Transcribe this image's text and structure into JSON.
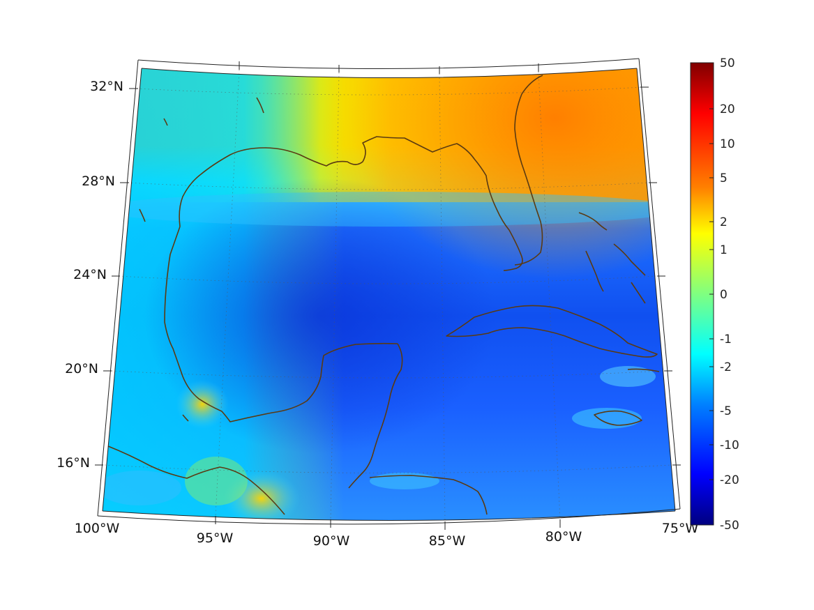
{
  "map": {
    "lat_labels": [
      "32°N",
      "28°N",
      "24°N",
      "20°N",
      "16°N"
    ],
    "lon_labels": [
      "100°W",
      "95°W",
      "90°W",
      "85°W",
      "80°W",
      "75°W"
    ],
    "coastline_color": "#5a3a12",
    "grid_style": "dotted"
  },
  "colorbar": {
    "tick_labels": [
      "50",
      "20",
      "10",
      "5",
      "2",
      "1",
      "0",
      "-1",
      "-2",
      "-5",
      "-10",
      "-20",
      "-50"
    ],
    "colormap": "jet",
    "range": [
      -50,
      50
    ]
  }
}
